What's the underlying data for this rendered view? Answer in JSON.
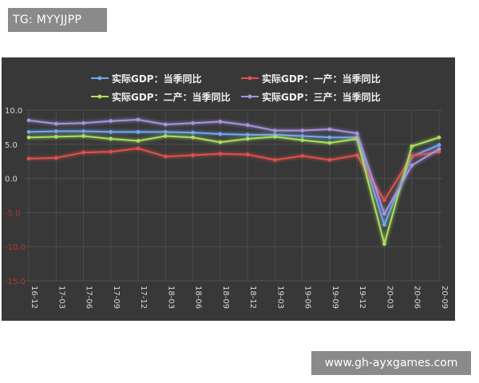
{
  "tag_text": "TG: MYYJJPP",
  "watermark_text": "www.gh-ayxgames.com",
  "chart_data": {
    "type": "line",
    "title": "",
    "xlabel": "",
    "ylabel": "",
    "ylim": [
      -15,
      10
    ],
    "yticks": [
      10,
      5,
      0,
      -5,
      -10,
      -15
    ],
    "ytick_labels": [
      "10.0",
      "5.0",
      "0.0",
      "-5.0",
      "-10.0",
      "-15.0"
    ],
    "categories": [
      "16-12",
      "17-03",
      "17-06",
      "17-09",
      "17-12",
      "18-03",
      "18-06",
      "18-09",
      "18-12",
      "19-03",
      "19-06",
      "19-09",
      "19-12",
      "20-03",
      "20-06",
      "20-09"
    ],
    "legend_position": "top",
    "grid": true,
    "series": [
      {
        "name": "实际GDP：当季同比",
        "color": "#6fa8f0",
        "values": [
          6.8,
          6.9,
          6.9,
          6.8,
          6.8,
          6.8,
          6.7,
          6.5,
          6.4,
          6.4,
          6.2,
          6.0,
          6.0,
          -6.8,
          3.2,
          4.9
        ]
      },
      {
        "name": "实际GDP：一产：当季同比",
        "color": "#e0504a",
        "values": [
          2.9,
          3.0,
          3.8,
          3.9,
          4.4,
          3.2,
          3.4,
          3.6,
          3.5,
          2.7,
          3.3,
          2.7,
          3.4,
          -3.2,
          3.3,
          3.9
        ]
      },
      {
        "name": "实际GDP：二产：当季同比",
        "color": "#a8e05a",
        "values": [
          6.0,
          6.1,
          6.2,
          5.8,
          5.5,
          6.2,
          6.0,
          5.3,
          5.8,
          6.1,
          5.6,
          5.2,
          5.8,
          -9.6,
          4.7,
          6.0
        ]
      },
      {
        "name": "实际GDP：三产：当季同比",
        "color": "#a892e0",
        "values": [
          8.5,
          8.0,
          8.1,
          8.4,
          8.6,
          7.9,
          8.1,
          8.3,
          7.8,
          7.0,
          7.0,
          7.2,
          6.6,
          -5.2,
          1.9,
          4.3
        ]
      }
    ]
  }
}
